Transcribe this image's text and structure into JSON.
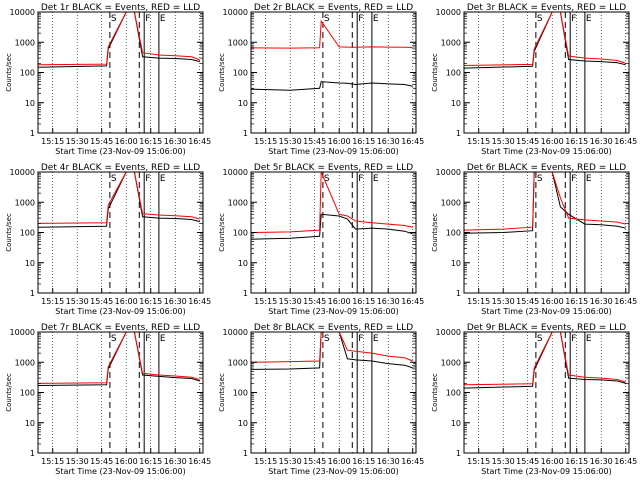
{
  "panel_common": {
    "ylabel": "Counts/sec",
    "xticks": [
      "15:15",
      "15:30",
      "15:45",
      "16:00",
      "16:15",
      "16:30",
      "16:45"
    ],
    "yticks": [
      "1",
      "10",
      "100",
      "1000",
      "10000"
    ],
    "markers": [
      "S",
      "F",
      "E"
    ]
  },
  "chart_data": [
    {
      "type": "line",
      "title": "Det 1r BLACK = Events, RED = LLD",
      "xlabel": "Start Time (23-Nov-09 15:06:00)",
      "ylabel": "Counts/sec",
      "yscale": "log",
      "ylim": [
        1,
        10000
      ],
      "x": [
        "15:06",
        "15:48",
        "15:49",
        "16:00",
        "16:05",
        "16:10",
        "16:20",
        "16:30",
        "16:40",
        "16:45"
      ],
      "series": [
        {
          "name": "Events",
          "color": "#000000",
          "values": [
            150,
            165,
            600,
            12000,
            12000,
            330,
            300,
            290,
            270,
            230
          ]
        },
        {
          "name": "LLD",
          "color": "#ff0000",
          "values": [
            180,
            190,
            700,
            12000,
            12000,
            450,
            380,
            360,
            330,
            260
          ]
        }
      ]
    },
    {
      "type": "line",
      "title": "Det 2r BLACK = Events, RED = LLD",
      "xlabel": "Start Time (23-Nov-09 15:06:00)",
      "ylabel": "Counts/sec",
      "yscale": "log",
      "ylim": [
        1,
        10000
      ],
      "x": [
        "15:06",
        "15:30",
        "15:48",
        "15:49",
        "16:00",
        "16:05",
        "16:10",
        "16:20",
        "16:30",
        "16:40",
        "16:45"
      ],
      "series": [
        {
          "name": "Events",
          "color": "#000000",
          "values": [
            28,
            26,
            30,
            50,
            45,
            44,
            40,
            45,
            42,
            40,
            35
          ]
        },
        {
          "name": "LLD",
          "color": "#ff0000",
          "values": [
            650,
            640,
            660,
            5000,
            700,
            690,
            680,
            700,
            690,
            680,
            670
          ]
        }
      ]
    },
    {
      "type": "line",
      "title": "Det 3r BLACK = Events, RED = LLD",
      "xlabel": "Start Time (23-Nov-09 15:06:00)",
      "ylabel": "Counts/sec",
      "yscale": "log",
      "ylim": [
        1,
        10000
      ],
      "x": [
        "15:06",
        "15:48",
        "15:49",
        "16:00",
        "16:05",
        "16:10",
        "16:20",
        "16:30",
        "16:40",
        "16:45"
      ],
      "series": [
        {
          "name": "Events",
          "color": "#000000",
          "values": [
            140,
            160,
            500,
            12000,
            12000,
            270,
            240,
            230,
            210,
            180
          ]
        },
        {
          "name": "LLD",
          "color": "#ff0000",
          "values": [
            170,
            185,
            600,
            12000,
            12000,
            350,
            300,
            280,
            250,
            200
          ]
        }
      ]
    },
    {
      "type": "line",
      "title": "Det 4r BLACK = Events, RED = LLD",
      "xlabel": "Start Time (23-Nov-09 15:06:00)",
      "ylabel": "Counts/sec",
      "yscale": "log",
      "ylim": [
        1,
        10000
      ],
      "x": [
        "15:06",
        "15:48",
        "15:49",
        "16:00",
        "16:05",
        "16:10",
        "16:20",
        "16:30",
        "16:40",
        "16:45"
      ],
      "series": [
        {
          "name": "Events",
          "color": "#000000",
          "values": [
            150,
            160,
            600,
            12000,
            12000,
            330,
            300,
            290,
            270,
            230
          ]
        },
        {
          "name": "LLD",
          "color": "#ff0000",
          "values": [
            200,
            210,
            800,
            12000,
            12000,
            420,
            380,
            360,
            330,
            280
          ]
        }
      ]
    },
    {
      "type": "line",
      "title": "Det 5r BLACK = Events, RED = LLD",
      "xlabel": "Start Time (23-Nov-09 15:06:00)",
      "ylabel": "Counts/sec",
      "yscale": "log",
      "ylim": [
        1,
        10000
      ],
      "x": [
        "15:06",
        "15:30",
        "15:48",
        "15:49",
        "16:00",
        "16:05",
        "16:10",
        "16:20",
        "16:30",
        "16:40",
        "16:45"
      ],
      "series": [
        {
          "name": "Events",
          "color": "#000000",
          "values": [
            60,
            65,
            75,
            400,
            350,
            280,
            130,
            140,
            130,
            110,
            90
          ]
        },
        {
          "name": "LLD",
          "color": "#ff0000",
          "values": [
            100,
            105,
            120,
            12000,
            400,
            350,
            240,
            210,
            190,
            170,
            150
          ]
        }
      ]
    },
    {
      "type": "line",
      "title": "Det 6r BLACK = Events, RED = LLD",
      "xlabel": "Start Time (23-Nov-09 15:06:00)",
      "ylabel": "Counts/sec",
      "yscale": "log",
      "ylim": [
        1,
        10000
      ],
      "x": [
        "15:06",
        "15:30",
        "15:48",
        "15:49",
        "16:00",
        "16:05",
        "16:10",
        "16:20",
        "16:30",
        "16:40",
        "16:45"
      ],
      "series": [
        {
          "name": "Events",
          "color": "#000000",
          "values": [
            95,
            100,
            115,
            12000,
            12000,
            700,
            400,
            190,
            180,
            160,
            140
          ]
        },
        {
          "name": "LLD",
          "color": "#ff0000",
          "values": [
            120,
            130,
            150,
            12000,
            12000,
            1400,
            300,
            260,
            240,
            220,
            190
          ]
        }
      ]
    },
    {
      "type": "line",
      "title": "Det 7r BLACK = Events, RED = LLD",
      "xlabel": "Start Time (23-Nov-09 15:06:00)",
      "ylabel": "Counts/sec",
      "yscale": "log",
      "ylim": [
        1,
        10000
      ],
      "x": [
        "15:06",
        "15:48",
        "15:49",
        "16:00",
        "16:05",
        "16:10",
        "16:20",
        "16:30",
        "16:40",
        "16:45"
      ],
      "series": [
        {
          "name": "Events",
          "color": "#000000",
          "values": [
            170,
            180,
            600,
            12000,
            12000,
            380,
            340,
            310,
            290,
            240
          ]
        },
        {
          "name": "LLD",
          "color": "#ff0000",
          "values": [
            200,
            210,
            700,
            12000,
            12000,
            430,
            380,
            350,
            320,
            270
          ]
        }
      ]
    },
    {
      "type": "line",
      "title": "Det 8r BLACK = Events, RED = LLD",
      "xlabel": "Start Time (23-Nov-09 15:06:00)",
      "ylabel": "Counts/sec",
      "yscale": "log",
      "ylim": [
        1,
        10000
      ],
      "x": [
        "15:06",
        "15:30",
        "15:48",
        "15:49",
        "16:00",
        "16:05",
        "16:10",
        "16:20",
        "16:30",
        "16:40",
        "16:45"
      ],
      "series": [
        {
          "name": "Events",
          "color": "#000000",
          "values": [
            580,
            600,
            650,
            12000,
            12000,
            1300,
            1200,
            1100,
            900,
            800,
            650
          ]
        },
        {
          "name": "LLD",
          "color": "#ff0000",
          "values": [
            1000,
            1050,
            1100,
            12000,
            12000,
            2500,
            2300,
            2000,
            1600,
            1400,
            1100
          ]
        }
      ]
    },
    {
      "type": "line",
      "title": "Det 9r BLACK = Events, RED = LLD",
      "xlabel": "Start Time (23-Nov-09 15:06:00)",
      "ylabel": "Counts/sec",
      "yscale": "log",
      "ylim": [
        1,
        10000
      ],
      "x": [
        "15:06",
        "15:48",
        "15:49",
        "16:00",
        "16:05",
        "16:10",
        "16:20",
        "16:30",
        "16:40",
        "16:45"
      ],
      "series": [
        {
          "name": "Events",
          "color": "#000000",
          "values": [
            140,
            160,
            550,
            12000,
            12000,
            300,
            270,
            260,
            240,
            200
          ]
        },
        {
          "name": "LLD",
          "color": "#ff0000",
          "values": [
            180,
            195,
            650,
            12000,
            12000,
            380,
            320,
            300,
            270,
            220
          ]
        }
      ]
    }
  ]
}
